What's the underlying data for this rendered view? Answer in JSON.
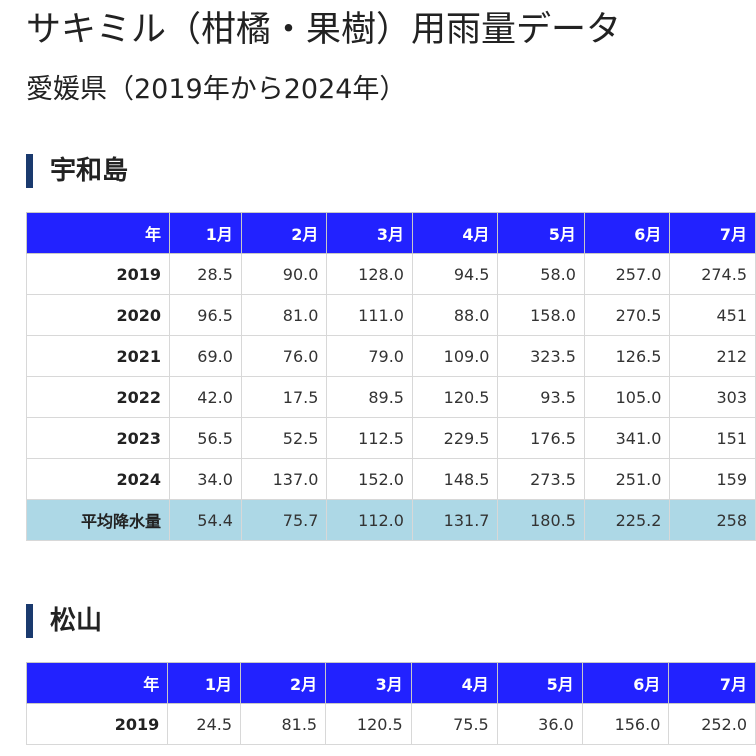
{
  "page": {
    "title": "サキミル（柑橘・果樹）用雨量データ",
    "subtitle": "愛媛県（2019年から2024年）"
  },
  "colors": {
    "header_bg": "#2222ff",
    "average_row_bg": "#add8e6",
    "section_marker": "#1a3a6e"
  },
  "sections": [
    {
      "name": "宇和島",
      "headers": [
        "年",
        "1月",
        "2月",
        "3月",
        "4月",
        "5月",
        "6月",
        "7月"
      ],
      "rows": [
        [
          "2019",
          "28.5",
          "90.0",
          "128.0",
          "94.5",
          "58.0",
          "257.0",
          "274.5"
        ],
        [
          "2020",
          "96.5",
          "81.0",
          "111.0",
          "88.0",
          "158.0",
          "270.5",
          "451"
        ],
        [
          "2021",
          "69.0",
          "76.0",
          "79.0",
          "109.0",
          "323.5",
          "126.5",
          "212"
        ],
        [
          "2022",
          "42.0",
          "17.5",
          "89.5",
          "120.5",
          "93.5",
          "105.0",
          "303"
        ],
        [
          "2023",
          "56.5",
          "52.5",
          "112.5",
          "229.5",
          "176.5",
          "341.0",
          "151"
        ],
        [
          "2024",
          "34.0",
          "137.0",
          "152.0",
          "148.5",
          "273.5",
          "251.0",
          "159"
        ]
      ],
      "average": [
        "平均降水量",
        "54.4",
        "75.7",
        "112.0",
        "131.7",
        "180.5",
        "225.2",
        "258"
      ]
    },
    {
      "name": "松山",
      "headers": [
        "年",
        "1月",
        "2月",
        "3月",
        "4月",
        "5月",
        "6月",
        "7月"
      ],
      "rows": [
        [
          "2019",
          "24.5",
          "81.5",
          "120.5",
          "75.5",
          "36.0",
          "156.0",
          "252.0"
        ]
      ]
    }
  ]
}
